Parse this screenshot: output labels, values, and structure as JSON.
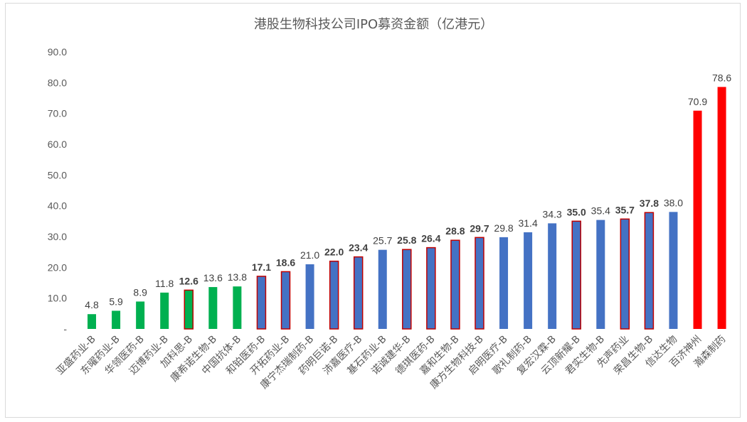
{
  "chart_data": {
    "type": "bar",
    "title": "港股生物科技公司IPO募资金额（亿港元）",
    "y_tick_labels": [
      "-",
      "10.0",
      "20.0",
      "30.0",
      "40.0",
      "50.0",
      "60.0",
      "70.0",
      "80.0",
      "90.0"
    ],
    "ylim": [
      0,
      90
    ],
    "grid": false,
    "legend": "none",
    "categories": [
      "亚盛药业-B",
      "东曜药业-B",
      "华领医药-B",
      "迈博药业-B",
      "加科思-B",
      "康希诺生物-B",
      "中国抗体-B",
      "和铂医药-B",
      "开拓药业-B",
      "康宁杰瑞制药-B",
      "药明巨诺-B",
      "沛嘉医疗-B",
      "基石药业-B",
      "诺诚建华-B",
      "德琪医药-B",
      "嘉和生物-B",
      "康方生物科技-B",
      "启明医疗-B",
      "歌礼制药-B",
      "复宏汉霖-B",
      "云顶新耀-B",
      "君实生物-B",
      "先声药业",
      "荣昌生物-B",
      "信达生物",
      "百济神州",
      "瀚森制药"
    ],
    "values": [
      4.8,
      5.9,
      8.9,
      11.8,
      12.6,
      13.6,
      13.8,
      17.1,
      18.6,
      21.0,
      22.0,
      23.4,
      25.7,
      25.8,
      26.4,
      28.8,
      29.7,
      29.8,
      31.4,
      34.3,
      35.0,
      35.4,
      35.7,
      37.8,
      38.0,
      70.9,
      78.6
    ],
    "value_labels": [
      "4.8",
      "5.9",
      "8.9",
      "11.8",
      "12.6",
      "13.6",
      "13.8",
      "17.1",
      "18.6",
      "21.0",
      "22.0",
      "23.4",
      "25.7",
      "25.8",
      "26.4",
      "28.8",
      "29.7",
      "29.8",
      "31.4",
      "34.3",
      "35.0",
      "35.4",
      "35.7",
      "37.8",
      "38.0",
      "70.9",
      "78.6"
    ],
    "bar_fill": [
      "green",
      "green",
      "green",
      "green",
      "green",
      "green",
      "green",
      "blue",
      "blue",
      "blue",
      "blue",
      "blue",
      "blue",
      "blue",
      "blue",
      "blue",
      "blue",
      "blue",
      "blue",
      "blue",
      "blue",
      "blue",
      "blue",
      "blue",
      "blue",
      "red",
      "red"
    ],
    "red_outline": [
      false,
      false,
      false,
      false,
      true,
      false,
      false,
      true,
      true,
      false,
      true,
      true,
      false,
      true,
      true,
      true,
      true,
      false,
      false,
      false,
      true,
      false,
      true,
      true,
      false,
      false,
      false
    ],
    "bold_label": [
      false,
      false,
      false,
      false,
      true,
      false,
      false,
      true,
      true,
      false,
      true,
      true,
      false,
      true,
      true,
      true,
      true,
      false,
      false,
      false,
      true,
      false,
      true,
      true,
      false,
      false,
      false
    ],
    "colors": {
      "green": "#00b050",
      "blue": "#4472c4",
      "red": "#ff0000",
      "outline": "#c00000"
    }
  }
}
